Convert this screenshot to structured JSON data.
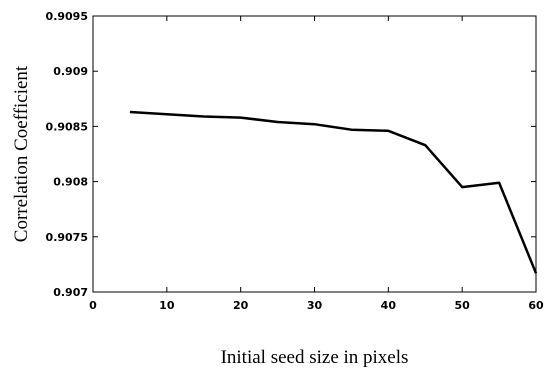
{
  "chart_data": {
    "type": "line",
    "title": "",
    "xlabel": "Initial seed size in pixels",
    "ylabel": "Correlation Coefficient",
    "xlim": [
      0,
      60
    ],
    "ylim": [
      0.907,
      0.9095
    ],
    "xticks": [
      0,
      10,
      20,
      30,
      40,
      50,
      60
    ],
    "xtick_labels": [
      "0",
      "10",
      "20",
      "30",
      "40",
      "50",
      "60"
    ],
    "yticks": [
      0.907,
      0.9075,
      0.908,
      0.9085,
      0.909,
      0.9095
    ],
    "ytick_labels": [
      "0.907",
      "0.9075",
      "0.908",
      "0.9085",
      "0.909",
      "0.9095"
    ],
    "grid": false,
    "series": [
      {
        "x": [
          5,
          10,
          15,
          20,
          25,
          30,
          35,
          40,
          45,
          50,
          55,
          60
        ],
        "y": [
          0.90863,
          0.90861,
          0.90859,
          0.90858,
          0.90854,
          0.90852,
          0.90847,
          0.90846,
          0.90833,
          0.90795,
          0.90799,
          0.90717
        ],
        "color": "#000000"
      }
    ]
  }
}
